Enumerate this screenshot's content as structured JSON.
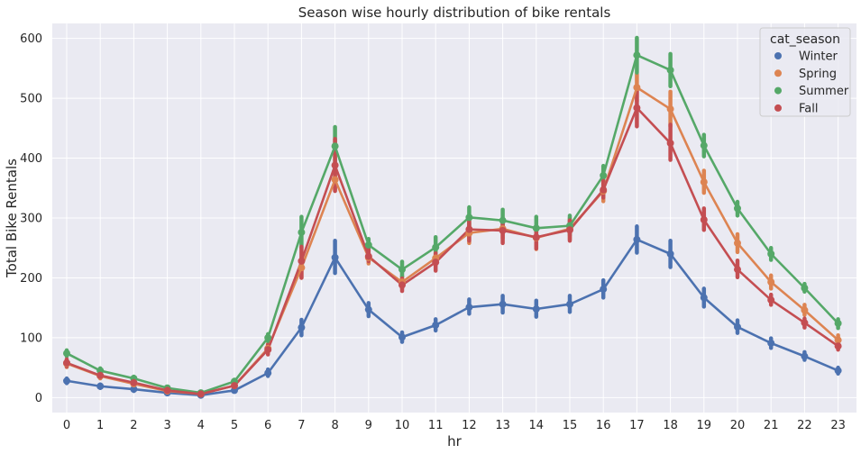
{
  "chart_data": {
    "type": "line",
    "title": "Season wise hourly distribution of bike rentals",
    "xlabel": "hr",
    "ylabel": "Total Bike Rentals",
    "categories": [
      "0",
      "1",
      "2",
      "3",
      "4",
      "5",
      "6",
      "7",
      "8",
      "9",
      "10",
      "11",
      "12",
      "13",
      "14",
      "15",
      "16",
      "17",
      "18",
      "19",
      "20",
      "21",
      "22",
      "23"
    ],
    "ylim": [
      -25,
      625
    ],
    "yticks": [
      0,
      100,
      200,
      300,
      400,
      500,
      600
    ],
    "grid": true,
    "legend": {
      "title": "cat_season",
      "placement": "top-right"
    },
    "series": [
      {
        "name": "Winter",
        "color": "#4c72b0",
        "values": [
          28,
          19,
          14,
          8,
          4,
          12,
          41,
          117,
          234,
          147,
          101,
          121,
          151,
          156,
          148,
          156,
          181,
          264,
          240,
          167,
          118,
          91,
          69,
          45
        ],
        "ci": [
          [
            24,
            32
          ],
          [
            16,
            22
          ],
          [
            11,
            17
          ],
          [
            6,
            10
          ],
          [
            3,
            6
          ],
          [
            10,
            15
          ],
          [
            36,
            47
          ],
          [
            104,
            130
          ],
          [
            208,
            262
          ],
          [
            136,
            158
          ],
          [
            93,
            109
          ],
          [
            112,
            131
          ],
          [
            140,
            164
          ],
          [
            142,
            170
          ],
          [
            135,
            162
          ],
          [
            143,
            170
          ],
          [
            167,
            196
          ],
          [
            242,
            286
          ],
          [
            218,
            262
          ],
          [
            152,
            182
          ],
          [
            108,
            129
          ],
          [
            83,
            99
          ],
          [
            63,
            76
          ],
          [
            40,
            50
          ]
        ]
      },
      {
        "name": "Spring",
        "color": "#dd8452",
        "values": [
          57,
          36,
          23,
          11,
          6,
          20,
          82,
          217,
          364,
          234,
          193,
          233,
          275,
          282,
          267,
          282,
          345,
          518,
          482,
          360,
          258,
          193,
          146,
          96
        ],
        "ci": [
          [
            51,
            63
          ],
          [
            32,
            40
          ],
          [
            20,
            26
          ],
          [
            9,
            13
          ],
          [
            5,
            8
          ],
          [
            17,
            24
          ],
          [
            74,
            90
          ],
          [
            200,
            234
          ],
          [
            347,
            381
          ],
          [
            224,
            244
          ],
          [
            183,
            203
          ],
          [
            220,
            246
          ],
          [
            258,
            292
          ],
          [
            266,
            298
          ],
          [
            248,
            286
          ],
          [
            264,
            300
          ],
          [
            328,
            363
          ],
          [
            495,
            541
          ],
          [
            453,
            511
          ],
          [
            342,
            379
          ],
          [
            243,
            273
          ],
          [
            182,
            204
          ],
          [
            138,
            155
          ],
          [
            88,
            104
          ]
        ]
      },
      {
        "name": "Summer",
        "color": "#55a868",
        "values": [
          74,
          45,
          32,
          16,
          8,
          27,
          100,
          276,
          420,
          255,
          214,
          251,
          301,
          296,
          283,
          287,
          371,
          572,
          547,
          421,
          316,
          240,
          183,
          124
        ],
        "ci": [
          [
            69,
            79
          ],
          [
            41,
            49
          ],
          [
            29,
            35
          ],
          [
            14,
            18
          ],
          [
            6,
            10
          ],
          [
            24,
            30
          ],
          [
            94,
            106
          ],
          [
            250,
            302
          ],
          [
            390,
            452
          ],
          [
            245,
            265
          ],
          [
            201,
            227
          ],
          [
            234,
            268
          ],
          [
            285,
            318
          ],
          [
            275,
            314
          ],
          [
            266,
            302
          ],
          [
            271,
            304
          ],
          [
            355,
            387
          ],
          [
            543,
            601
          ],
          [
            520,
            574
          ],
          [
            403,
            439
          ],
          [
            304,
            327
          ],
          [
            230,
            250
          ],
          [
            177,
            190
          ],
          [
            116,
            131
          ]
        ]
      },
      {
        "name": "Fall",
        "color": "#c44e52",
        "values": [
          58,
          37,
          25,
          12,
          6,
          20,
          80,
          228,
          388,
          236,
          188,
          226,
          281,
          279,
          268,
          280,
          347,
          484,
          425,
          297,
          214,
          163,
          125,
          86
        ],
        "ci": [
          [
            52,
            64
          ],
          [
            33,
            41
          ],
          [
            22,
            28
          ],
          [
            10,
            14
          ],
          [
            5,
            8
          ],
          [
            17,
            23
          ],
          [
            72,
            88
          ],
          [
            200,
            252
          ],
          [
            345,
            432
          ],
          [
            228,
            247
          ],
          [
            178,
            199
          ],
          [
            212,
            241
          ],
          [
            262,
            300
          ],
          [
            258,
            297
          ],
          [
            249,
            284
          ],
          [
            262,
            296
          ],
          [
            334,
            362
          ],
          [
            453,
            514
          ],
          [
            397,
            456
          ],
          [
            280,
            316
          ],
          [
            201,
            229
          ],
          [
            155,
            172
          ],
          [
            117,
            132
          ],
          [
            80,
            93
          ]
        ]
      }
    ]
  }
}
